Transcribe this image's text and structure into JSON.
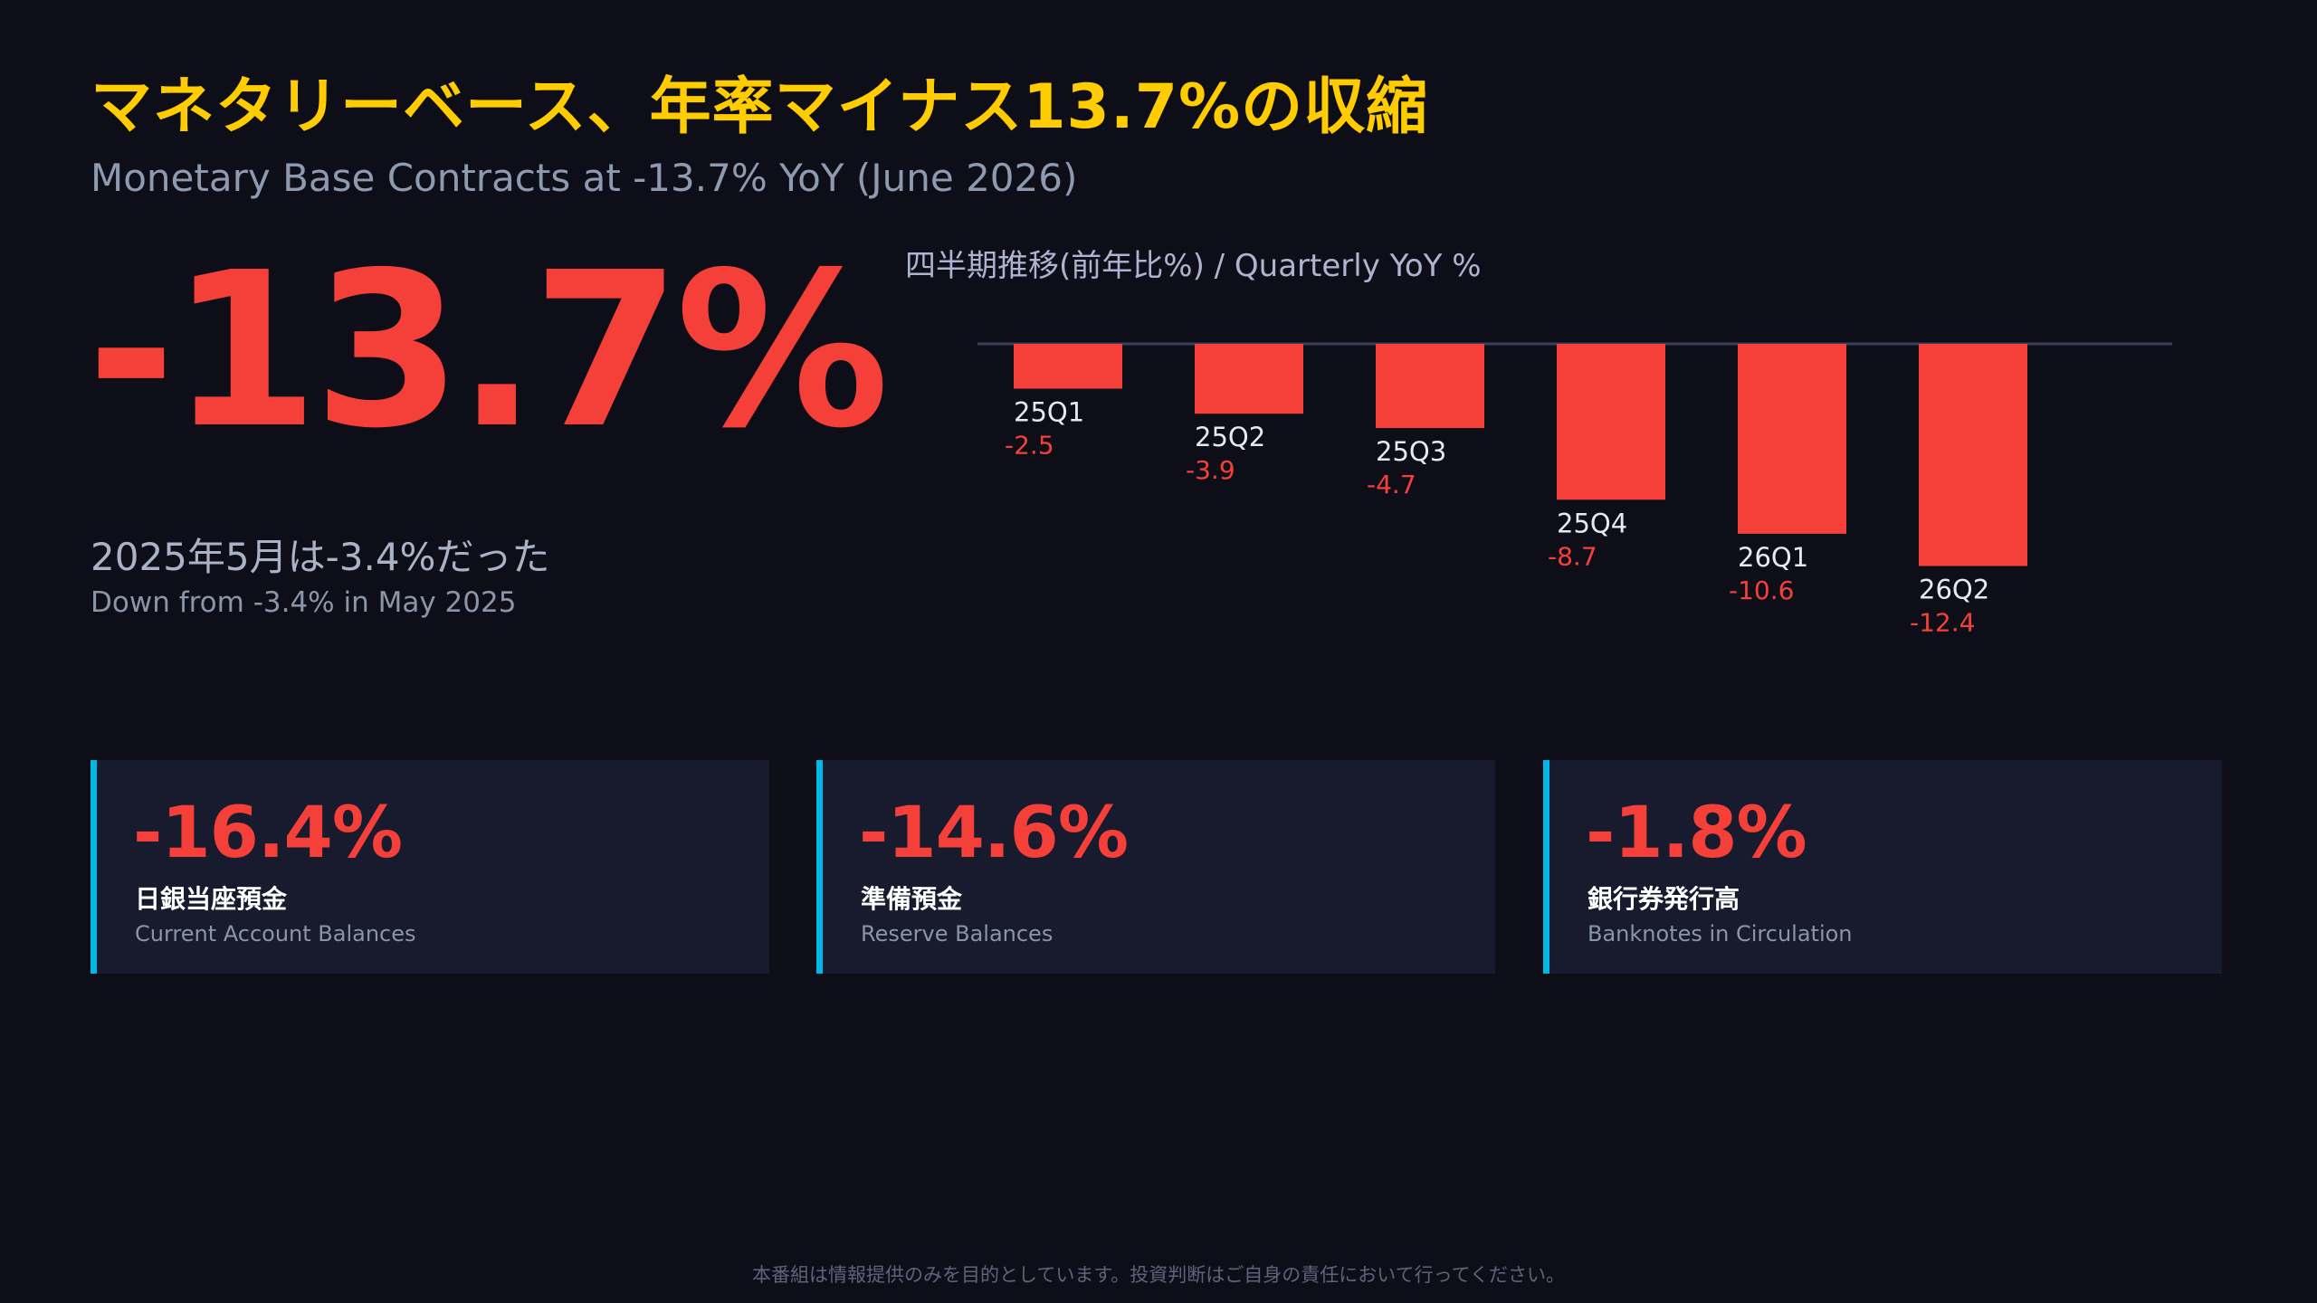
{
  "title": "マネタリーベース、年率マイナス13.7%の収縮",
  "subtitle": "Monetary Base Contracts at -13.7% YoY (June 2026)",
  "hero_value": "-13.7%",
  "comparison": {
    "ja": "2025年5月は-3.4%だった",
    "en": "Down from -3.4% in May 2025"
  },
  "colors": {
    "title": "#ffcc00",
    "negative": "#f5403a",
    "accent": "#00b8e6",
    "background": "#0e0e19",
    "card": "#181a2d"
  },
  "chart_data": {
    "type": "bar",
    "title": "四半期推移(前年比%) / Quarterly YoY %",
    "categories": [
      "25Q1",
      "25Q2",
      "25Q3",
      "25Q4",
      "26Q1",
      "26Q2"
    ],
    "values": [
      -2.5,
      -3.9,
      -4.7,
      -8.7,
      -10.6,
      -12.4
    ],
    "value_labels": [
      "-2.5",
      "-3.9",
      "-4.7",
      "-8.7",
      "-10.6",
      "-12.4"
    ],
    "baseline": 0,
    "ylim": [
      -12.4,
      0
    ],
    "grid": false,
    "legend": "none"
  },
  "cards": [
    {
      "value": "-16.4%",
      "ja": "日銀当座預金",
      "en": "Current Account Balances"
    },
    {
      "value": "-14.6%",
      "ja": "準備預金",
      "en": "Reserve Balances"
    },
    {
      "value": "-1.8%",
      "ja": "銀行券発行高",
      "en": "Banknotes in Circulation"
    }
  ],
  "disclaimer": "本番組は情報提供のみを目的としています。投資判断はご自身の責任において行ってください。"
}
